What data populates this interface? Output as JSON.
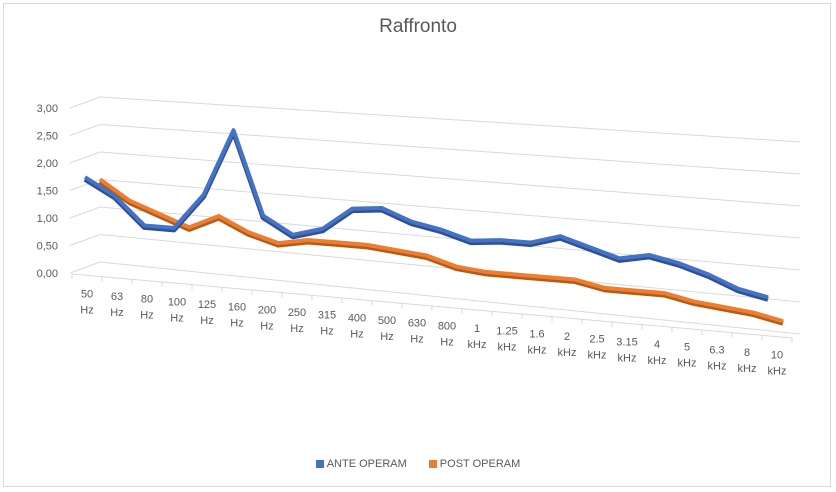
{
  "chart_data": {
    "type": "line",
    "subtype": "3d-line",
    "title": "Raffronto",
    "xlabel": "",
    "ylabel": "",
    "ylim": [
      0,
      3
    ],
    "yticks": [
      "0,00",
      "0,50",
      "1,00",
      "1,50",
      "2,00",
      "2,50",
      "3,00"
    ],
    "categories": [
      [
        "50",
        "Hz"
      ],
      [
        "63",
        "Hz"
      ],
      [
        "80",
        "Hz"
      ],
      [
        "100",
        "Hz"
      ],
      [
        "125",
        "Hz"
      ],
      [
        "160",
        "Hz"
      ],
      [
        "200",
        "Hz"
      ],
      [
        "250",
        "Hz"
      ],
      [
        "315",
        "Hz"
      ],
      [
        "400",
        "Hz"
      ],
      [
        "500",
        "Hz"
      ],
      [
        "630",
        "Hz"
      ],
      [
        "800",
        "Hz"
      ],
      [
        "1",
        "kHz"
      ],
      [
        "1.25",
        "kHz"
      ],
      [
        "1.6",
        "kHz"
      ],
      [
        "2",
        "kHz"
      ],
      [
        "2.5",
        "kHz"
      ],
      [
        "3.15",
        "kHz"
      ],
      [
        "4",
        "kHz"
      ],
      [
        "5",
        "kHz"
      ],
      [
        "6.3",
        "kHz"
      ],
      [
        "8",
        "kHz"
      ],
      [
        "10",
        "kHz"
      ]
    ],
    "series": [
      {
        "name": "ANTE OPERAM",
        "color": "#4472c4",
        "values": [
          1.65,
          1.35,
          0.85,
          0.85,
          1.5,
          2.7,
          1.2,
          0.9,
          1.05,
          1.45,
          1.5,
          1.3,
          1.2,
          1.05,
          1.1,
          1.1,
          1.25,
          1.1,
          0.95,
          1.05,
          0.95,
          0.8,
          0.6,
          0.5
        ]
      },
      {
        "name": "POST OPERAM",
        "color": "#ed7d31",
        "values": [
          1.5,
          1.15,
          0.95,
          0.75,
          1.0,
          0.75,
          0.6,
          0.7,
          0.7,
          0.7,
          0.65,
          0.6,
          0.45,
          0.4,
          0.4,
          0.4,
          0.4,
          0.3,
          0.3,
          0.3,
          0.2,
          0.15,
          0.1,
          0.0
        ]
      }
    ],
    "grid": true,
    "legend": "bottom"
  }
}
